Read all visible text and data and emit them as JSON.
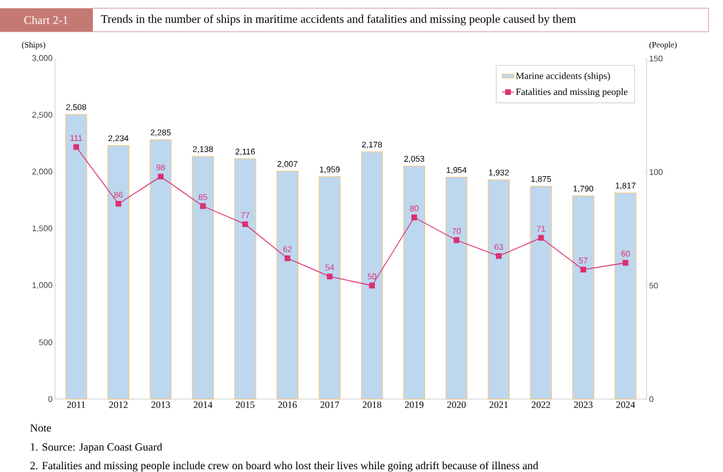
{
  "chart_data": {
    "type": "bar",
    "title": "Chart 2-1",
    "subtitle": "Trends in the number of ships in maritime accidents and fatalities and missing people caused by them",
    "ylabel": "(Ships)",
    "y2label": "(People)",
    "categories": [
      "2011",
      "2012",
      "2013",
      "2014",
      "2015",
      "2016",
      "2017",
      "2018",
      "2019",
      "2020",
      "2021",
      "2022",
      "2023",
      "2024"
    ],
    "series": [
      {
        "name": "Marine accidents (ships)",
        "color": "#bdd7ee",
        "values": [
          2508,
          2234,
          2285,
          2138,
          2116,
          2007,
          1959,
          2178,
          2053,
          1954,
          1932,
          1875,
          1790,
          1817
        ],
        "value_labels": [
          "2,508",
          "2,234",
          "2,285",
          "2,138",
          "2,116",
          "2,007",
          "1,959",
          "2,178",
          "2,053",
          "1,954",
          "1,932",
          "1,875",
          "1,790",
          "1,817"
        ]
      },
      {
        "name": "Fatalities and missing people",
        "type": "line",
        "axis": "y2",
        "color": "#dc2f72",
        "marker": "square",
        "values": [
          111,
          86,
          98,
          85,
          77,
          62,
          54,
          50,
          80,
          70,
          63,
          71,
          57,
          60
        ],
        "value_labels": [
          "111",
          "86",
          "98",
          "85",
          "77",
          "62",
          "54",
          "50",
          "80",
          "70",
          "63",
          "71",
          "57",
          "60"
        ]
      }
    ],
    "ylim": [
      0,
      3000
    ],
    "yticks": [
      0,
      500,
      {
        "value": 1000,
        "label": "1,000"
      },
      {
        "value": 1500,
        "label": "1,500"
      },
      {
        "value": 2000,
        "label": "2,000"
      },
      {
        "value": 2500,
        "label": "2,500"
      },
      {
        "value": 3000,
        "label": "3,000"
      }
    ],
    "y2lim": [
      0,
      150
    ],
    "y2ticks": [
      0,
      50,
      100,
      150
    ],
    "legend": "top right",
    "annotations": [
      "Note",
      "1.   Source: Japan Coast Guard",
      "2.   Fatalities and missing people include crew on board who lost their lives while going adrift because of illness and"
    ]
  }
}
